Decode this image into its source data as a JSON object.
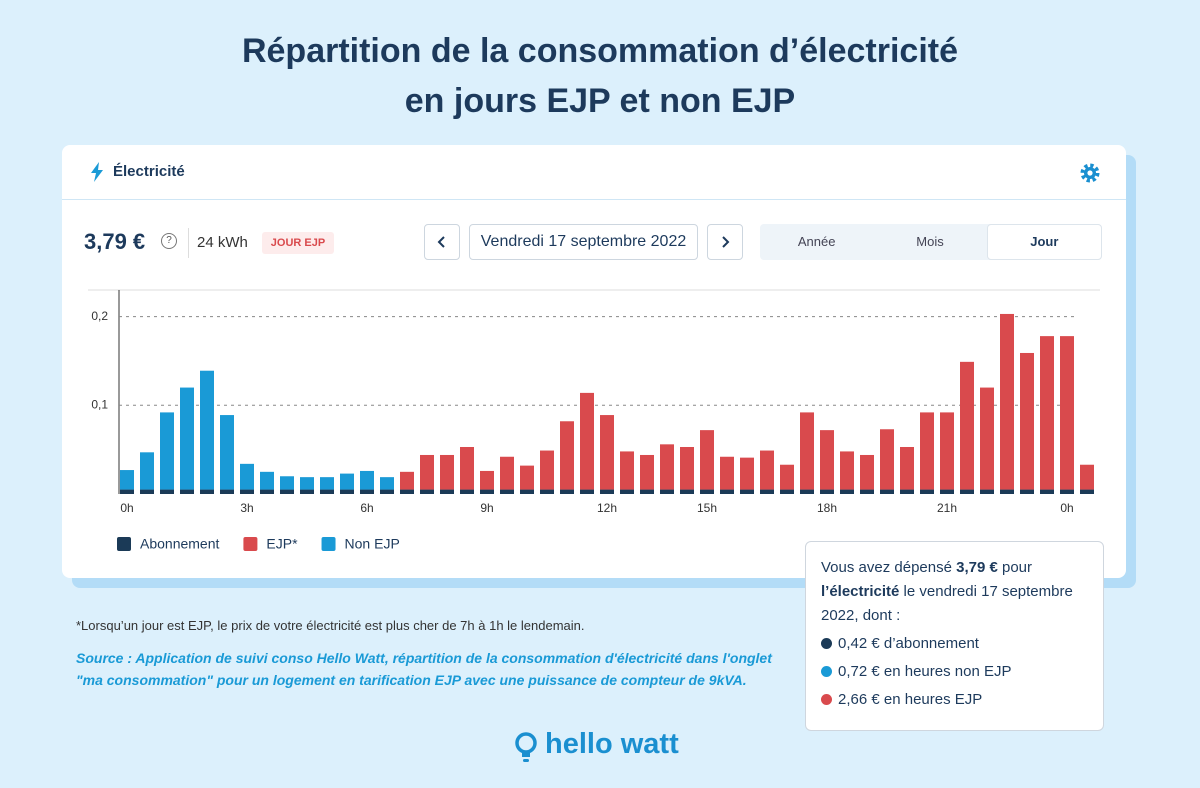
{
  "title": [
    "Répartition de la consommation d’électricité",
    "en jours EJP et non EJP"
  ],
  "card": {
    "header": "Électricité",
    "total": "3,79 €",
    "help": "?",
    "energy": "24 kWh",
    "badge": "JOUR EJP",
    "date": "Vendredi 17 septembre 2022",
    "tabs": [
      "Année",
      "Mois",
      "Jour"
    ]
  },
  "tooltip": {
    "intro": [
      "Vous avez dépensé ",
      "3,79 €",
      " pour ",
      "l’électricité",
      " le vendredi 17 septembre 2022, dont :"
    ],
    "items": [
      "0,42 € d’abonnement",
      "0,72 € en heures non EJP",
      "2,66 € en heures EJP"
    ]
  },
  "footnote": "*Lorsqu’un jour est EJP, le prix de votre électricité est plus cher de 7h à 1h le lendemain.",
  "source": "Source : Application de suivi conso Hello Watt, répartition de la consommation d'électricité dans l'onglet \"ma consommation\" pour un logement en tarification EJP avec une puissance de compteur de 9kVA.",
  "brand": "hello watt",
  "chart_data": {
    "type": "bar",
    "stacked": true,
    "grid": true,
    "legend": "bottom-left",
    "categories": [
      "0h",
      null,
      null,
      null,
      null,
      null,
      "3h",
      null,
      null,
      null,
      null,
      null,
      "6h",
      null,
      null,
      null,
      null,
      null,
      "9h",
      null,
      null,
      null,
      null,
      null,
      "12h",
      null,
      null,
      null,
      null,
      "15h",
      null,
      null,
      null,
      null,
      null,
      "18h",
      null,
      null,
      null,
      null,
      null,
      "21h",
      null,
      null,
      null,
      null,
      null,
      "0h",
      null
    ],
    "series": [
      {
        "name": "Abonnement",
        "color": "#1b3a57",
        "values": [
          0.005,
          0.005,
          0.005,
          0.005,
          0.005,
          0.005,
          0.005,
          0.005,
          0.005,
          0.005,
          0.005,
          0.005,
          0.005,
          0.005,
          0.005,
          0.005,
          0.005,
          0.005,
          0.005,
          0.005,
          0.005,
          0.005,
          0.005,
          0.005,
          0.005,
          0.005,
          0.005,
          0.005,
          0.005,
          0.005,
          0.005,
          0.005,
          0.005,
          0.005,
          0.005,
          0.005,
          0.005,
          0.005,
          0.005,
          0.005,
          0.005,
          0.005,
          0.005,
          0.005,
          0.005,
          0.005,
          0.005,
          0.005,
          0.005
        ]
      },
      {
        "name": "EJP*",
        "color": "#d94a4d",
        "values": [
          null,
          null,
          null,
          null,
          null,
          null,
          null,
          null,
          null,
          null,
          null,
          null,
          null,
          null,
          0.02,
          0.039,
          0.039,
          0.048,
          0.021,
          0.037,
          0.027,
          0.044,
          0.077,
          0.109,
          0.084,
          0.043,
          0.039,
          0.051,
          0.048,
          0.067,
          0.037,
          0.036,
          0.044,
          0.028,
          0.087,
          0.067,
          0.043,
          0.039,
          0.068,
          0.048,
          0.087,
          0.087,
          0.144,
          0.115,
          0.198,
          0.154,
          0.173,
          0.173,
          0.028
        ]
      },
      {
        "name": "Non EJP",
        "color": "#1a9ad6",
        "values": [
          0.022,
          0.042,
          0.087,
          0.115,
          0.134,
          0.084,
          0.029,
          0.02,
          0.015,
          0.014,
          0.014,
          0.018,
          0.021,
          0.014,
          null,
          null,
          null,
          null,
          null,
          null,
          null,
          null,
          null,
          null,
          null,
          null,
          null,
          null,
          null,
          null,
          null,
          null,
          null,
          null,
          null,
          null,
          null,
          null,
          null,
          null,
          null,
          null,
          null,
          null,
          null,
          null,
          null,
          null,
          null
        ]
      }
    ],
    "ylim": [
      0,
      0.23
    ],
    "yticks": [
      {
        "value": 0.1,
        "label": "0,1"
      },
      {
        "value": 0.2,
        "label": "0,2"
      }
    ]
  }
}
